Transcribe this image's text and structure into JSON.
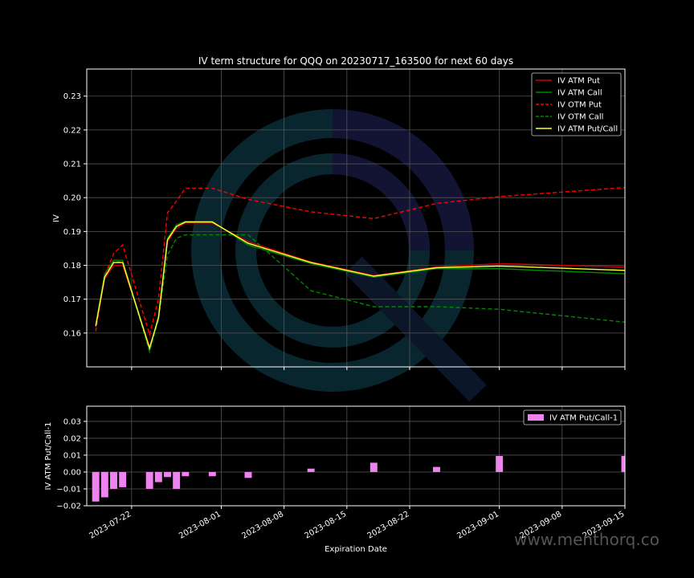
{
  "chart_data": [
    {
      "type": "line",
      "title": "IV term structure for QQQ on 20230717_163500 for next 60 days",
      "xlabel": "",
      "ylabel": "IV",
      "xlim": [
        "2023-07-17",
        "2023-09-15"
      ],
      "ylim": [
        0.15,
        0.238
      ],
      "yticks": [
        "0.16",
        "0.17",
        "0.18",
        "0.19",
        "0.20",
        "0.21",
        "0.22",
        "0.23"
      ],
      "ytick_values": [
        0.16,
        0.17,
        0.18,
        0.19,
        0.2,
        0.21,
        0.22,
        0.23
      ],
      "xtick_dates": [
        "2023-07-22",
        "2023-08-01",
        "2023-08-08",
        "2023-08-15",
        "2023-08-22",
        "2023-09-01",
        "2023-09-08",
        "2023-09-15"
      ],
      "grid": true,
      "legend_position": "top-right",
      "x": [
        "2023-07-18",
        "2023-07-19",
        "2023-07-20",
        "2023-07-21",
        "2023-07-24",
        "2023-07-25",
        "2023-07-26",
        "2023-07-27",
        "2023-07-28",
        "2023-07-31",
        "2023-08-04",
        "2023-08-11",
        "2023-08-18",
        "2023-08-25",
        "2023-09-01",
        "2023-09-15"
      ],
      "series": [
        {
          "name": "IV ATM Put",
          "color": "#cc0000",
          "dash": "solid",
          "values": [
            0.162,
            0.176,
            0.18,
            0.18,
            0.156,
            0.164,
            0.187,
            0.191,
            0.1925,
            0.1925,
            0.187,
            0.181,
            0.177,
            0.1795,
            0.1805,
            0.1795
          ]
        },
        {
          "name": "IV ATM Call",
          "color": "#008800",
          "dash": "solid",
          "values": [
            0.1625,
            0.1775,
            0.1815,
            0.1815,
            0.155,
            0.165,
            0.188,
            0.192,
            0.193,
            0.193,
            0.186,
            0.1805,
            0.1765,
            0.179,
            0.179,
            0.1775
          ]
        },
        {
          "name": "IV OTM Put",
          "color": "#ff0000",
          "dash": "dashed",
          "values": [
            0.1605,
            0.177,
            0.1835,
            0.186,
            0.1595,
            0.17,
            0.1955,
            0.199,
            0.2028,
            0.2028,
            0.1995,
            0.1958,
            0.1938,
            0.1983,
            0.2003,
            0.203
          ]
        },
        {
          "name": "IV OTM Call",
          "color": "#008800",
          "dash": "dashed",
          "values": [
            0.162,
            0.177,
            0.181,
            0.181,
            0.1545,
            0.164,
            0.183,
            0.188,
            0.189,
            0.189,
            0.189,
            0.1725,
            0.1678,
            0.1678,
            0.167,
            0.1632
          ]
        },
        {
          "name": "IV ATM Put/Call",
          "color": "#ffff33",
          "dash": "solid",
          "values": [
            0.162,
            0.1765,
            0.1808,
            0.1808,
            0.1555,
            0.1645,
            0.1875,
            0.1915,
            0.1928,
            0.1928,
            0.1865,
            0.1808,
            0.1768,
            0.1793,
            0.1798,
            0.1785
          ]
        }
      ]
    },
    {
      "type": "bar",
      "title": "",
      "xlabel": "Expiration Date",
      "ylabel": "IV ATM Put/Call-1",
      "xlim": [
        "2023-07-17",
        "2023-09-15"
      ],
      "ylim": [
        -0.02,
        0.039
      ],
      "yticks": [
        "−0.02",
        "−0.01",
        "0.00",
        "0.01",
        "0.02",
        "0.03"
      ],
      "ytick_values": [
        -0.02,
        -0.01,
        0.0,
        0.01,
        0.02,
        0.03
      ],
      "xtick_labels": [
        "2023-07-22",
        "2023-08-01",
        "2023-08-08",
        "2023-08-15",
        "2023-08-22",
        "2023-09-01",
        "2023-09-08",
        "2023-09-15"
      ],
      "xtick_dates": [
        "2023-07-22",
        "2023-08-01",
        "2023-08-08",
        "2023-08-15",
        "2023-08-22",
        "2023-09-01",
        "2023-09-08",
        "2023-09-15"
      ],
      "grid": true,
      "legend_position": "top-right",
      "series": [
        {
          "name": "IV ATM Put/Call-1",
          "color": "#ee82ee",
          "x": [
            "2023-07-18",
            "2023-07-19",
            "2023-07-20",
            "2023-07-21",
            "2023-07-24",
            "2023-07-25",
            "2023-07-26",
            "2023-07-27",
            "2023-07-28",
            "2023-07-31",
            "2023-08-04",
            "2023-08-11",
            "2023-08-18",
            "2023-08-25",
            "2023-09-01",
            "2023-09-15"
          ],
          "values": [
            -0.0175,
            -0.015,
            -0.01,
            -0.009,
            -0.01,
            -0.006,
            -0.003,
            -0.01,
            -0.0025,
            -0.0025,
            -0.0035,
            0.002,
            0.0055,
            0.003,
            0.0095,
            0.0095
          ]
        }
      ]
    }
  ],
  "watermark": "www.menthorq.co"
}
